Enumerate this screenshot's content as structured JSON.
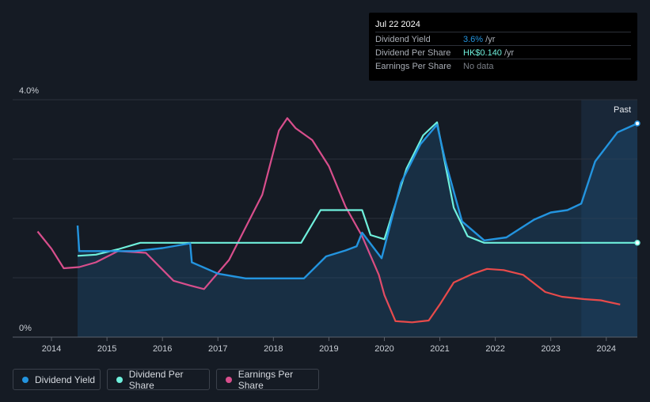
{
  "tooltip": {
    "date": "Jul 22 2024",
    "rows": [
      {
        "label": "Dividend Yield",
        "value": "3.6%",
        "unit": " /yr",
        "color": "#2394df"
      },
      {
        "label": "Dividend Per Share",
        "value": "HK$0.140",
        "unit": " /yr",
        "color": "#6ff0dc"
      },
      {
        "label": "Earnings Per Share",
        "value": "No data",
        "unit": "",
        "color": "#7a7f87"
      }
    ]
  },
  "legend": [
    {
      "label": "Dividend Yield",
      "color": "#2394df"
    },
    {
      "label": "Dividend Per Share",
      "color": "#6ff0dc"
    },
    {
      "label": "Earnings Per Share",
      "color": "#d84e8c"
    }
  ],
  "chart_data": {
    "type": "line",
    "title": "",
    "xlabel": "",
    "ylabel": "",
    "xlim": [
      2013.3,
      2024.56
    ],
    "ylim": [
      0,
      4.0
    ],
    "y_tick_labels": [
      "4.0%",
      "0%"
    ],
    "x_ticks": [
      2014,
      2015,
      2016,
      2017,
      2018,
      2019,
      2020,
      2021,
      2022,
      2023,
      2024
    ],
    "past_label": "Past",
    "past_start": 2023.55,
    "series": [
      {
        "name": "Dividend Yield",
        "color": "#2394df",
        "points": [
          [
            2014.47,
            1.88
          ],
          [
            2014.5,
            1.45
          ],
          [
            2014.9,
            1.45
          ],
          [
            2015.5,
            1.45
          ],
          [
            2016.0,
            1.5
          ],
          [
            2016.5,
            1.58
          ],
          [
            2016.53,
            1.26
          ],
          [
            2017.0,
            1.07
          ],
          [
            2017.5,
            0.99
          ],
          [
            2018.0,
            0.99
          ],
          [
            2018.55,
            0.99
          ],
          [
            2018.95,
            1.36
          ],
          [
            2019.3,
            1.46
          ],
          [
            2019.5,
            1.53
          ],
          [
            2019.6,
            1.76
          ],
          [
            2019.95,
            1.33
          ],
          [
            2020.3,
            2.6
          ],
          [
            2020.65,
            3.25
          ],
          [
            2020.95,
            3.58
          ],
          [
            2021.1,
            2.96
          ],
          [
            2021.4,
            1.95
          ],
          [
            2021.8,
            1.63
          ],
          [
            2022.2,
            1.68
          ],
          [
            2022.7,
            1.98
          ],
          [
            2023.0,
            2.1
          ],
          [
            2023.3,
            2.14
          ],
          [
            2023.55,
            2.25
          ],
          [
            2023.8,
            2.96
          ],
          [
            2024.2,
            3.45
          ],
          [
            2024.56,
            3.6
          ]
        ]
      },
      {
        "name": "Dividend Per Share",
        "color": "#6ff0dc",
        "points": [
          [
            2014.47,
            1.37
          ],
          [
            2014.8,
            1.39
          ],
          [
            2015.2,
            1.48
          ],
          [
            2015.6,
            1.59
          ],
          [
            2016.0,
            1.59
          ],
          [
            2017.0,
            1.59
          ],
          [
            2018.0,
            1.59
          ],
          [
            2018.5,
            1.59
          ],
          [
            2018.85,
            2.14
          ],
          [
            2019.6,
            2.14
          ],
          [
            2019.75,
            1.72
          ],
          [
            2020.0,
            1.65
          ],
          [
            2020.4,
            2.84
          ],
          [
            2020.7,
            3.4
          ],
          [
            2020.95,
            3.62
          ],
          [
            2021.25,
            2.18
          ],
          [
            2021.5,
            1.7
          ],
          [
            2021.8,
            1.59
          ],
          [
            2022.5,
            1.59
          ],
          [
            2023.5,
            1.59
          ],
          [
            2024.56,
            1.59
          ]
        ]
      },
      {
        "name": "Earnings Per Share",
        "color": "#d84e8c",
        "color_negative": "#e84a4a",
        "points": [
          [
            2013.75,
            1.78
          ],
          [
            2014.0,
            1.49
          ],
          [
            2014.22,
            1.16
          ],
          [
            2014.5,
            1.18
          ],
          [
            2014.8,
            1.26
          ],
          [
            2015.2,
            1.45
          ],
          [
            2015.7,
            1.42
          ],
          [
            2016.2,
            0.95
          ],
          [
            2016.5,
            0.87
          ],
          [
            2016.75,
            0.81
          ],
          [
            2017.2,
            1.3
          ],
          [
            2017.8,
            2.4
          ],
          [
            2018.1,
            3.48
          ],
          [
            2018.25,
            3.69
          ],
          [
            2018.4,
            3.52
          ],
          [
            2018.7,
            3.32
          ],
          [
            2019.0,
            2.88
          ],
          [
            2019.3,
            2.2
          ],
          [
            2019.6,
            1.7
          ],
          [
            2019.9,
            1.05
          ],
          [
            2020.0,
            0.71
          ],
          [
            2020.2,
            0.27
          ],
          [
            2020.5,
            0.25
          ],
          [
            2020.8,
            0.28
          ],
          [
            2021.0,
            0.55
          ],
          [
            2021.25,
            0.92
          ],
          [
            2021.6,
            1.07
          ],
          [
            2021.85,
            1.15
          ],
          [
            2022.15,
            1.13
          ],
          [
            2022.5,
            1.05
          ],
          [
            2022.9,
            0.76
          ],
          [
            2023.2,
            0.68
          ],
          [
            2023.6,
            0.64
          ],
          [
            2023.9,
            0.62
          ],
          [
            2024.25,
            0.55
          ]
        ]
      }
    ]
  }
}
